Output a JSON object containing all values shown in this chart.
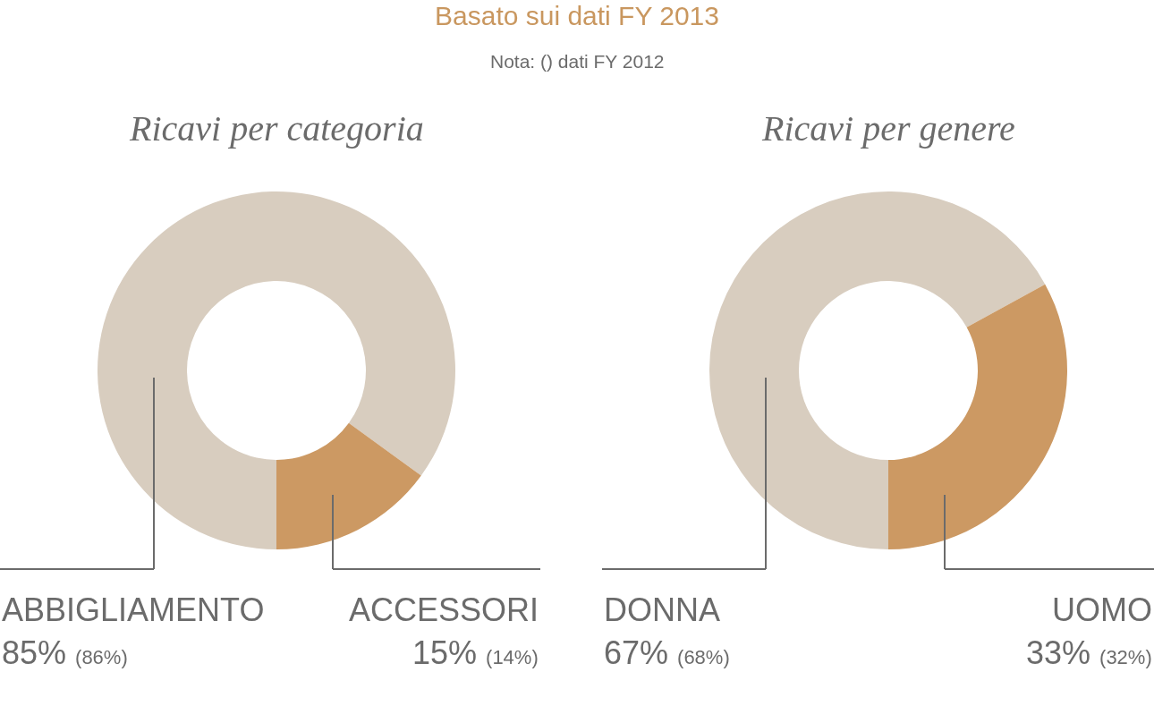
{
  "chart_data": [
    {
      "type": "donut",
      "title": "Ricavi per categoria",
      "annotations": [
        "Basato sui dati FY 2013",
        "Nota: () dati FY 2012"
      ],
      "categories": [
        "ABBIGLIAMENTO",
        "ACCESSORI"
      ],
      "values": [
        85,
        15
      ],
      "value_labels": [
        "85% (86%)",
        "15% (14%)"
      ],
      "colors": [
        "#d8cdbf",
        "#cc9963"
      ]
    },
    {
      "type": "donut",
      "title": "Ricavi per genere",
      "categories": [
        "DONNA",
        "UOMO"
      ],
      "values": [
        67,
        33
      ],
      "value_labels": [
        "67% (68%)",
        "33% (32%)"
      ],
      "colors": [
        "#d8cdbf",
        "#cc9963"
      ]
    }
  ]
}
